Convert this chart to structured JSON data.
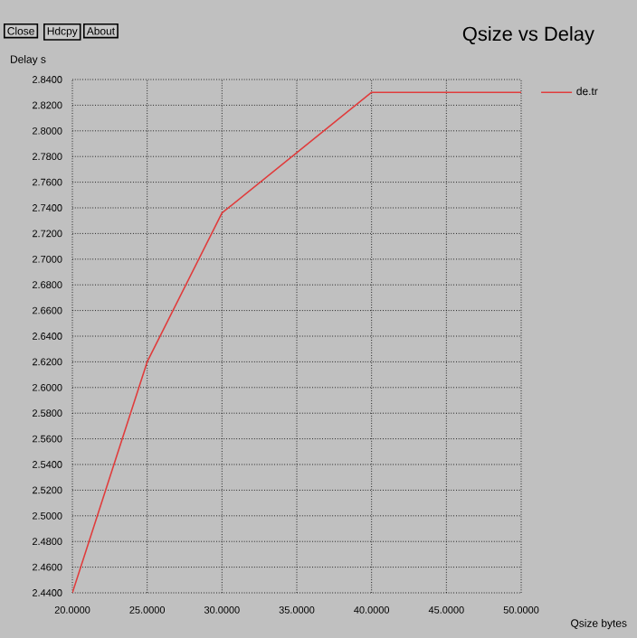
{
  "chart_data": {
    "type": "line",
    "title": "Qsize vs Delay",
    "xlabel": "Qsize bytes",
    "ylabel": "Delay s",
    "annotations": [
      "Close",
      "Hdcpy",
      "About"
    ],
    "x": [
      20,
      25,
      30,
      40,
      50
    ],
    "series": [
      {
        "name": "de.tr",
        "color": "#e03c3c",
        "values": [
          2.44,
          2.62,
          2.736,
          2.83,
          2.83
        ]
      }
    ],
    "xlim": [
      20,
      50
    ],
    "ylim": [
      2.44,
      2.84
    ],
    "xticks": [
      {
        "value": 20,
        "label": "20.0000"
      },
      {
        "value": 25,
        "label": "25.0000"
      },
      {
        "value": 30,
        "label": "30.0000"
      },
      {
        "value": 35,
        "label": "35.0000"
      },
      {
        "value": 40,
        "label": "40.0000"
      },
      {
        "value": 45,
        "label": "45.0000"
      },
      {
        "value": 50,
        "label": "50.0000"
      }
    ],
    "yticks": [
      {
        "value": 2.44,
        "label": "2.4400"
      },
      {
        "value": 2.46,
        "label": "2.4600"
      },
      {
        "value": 2.48,
        "label": "2.4800"
      },
      {
        "value": 2.5,
        "label": "2.5000"
      },
      {
        "value": 2.52,
        "label": "2.5200"
      },
      {
        "value": 2.54,
        "label": "2.5400"
      },
      {
        "value": 2.56,
        "label": "2.5600"
      },
      {
        "value": 2.58,
        "label": "2.5800"
      },
      {
        "value": 2.6,
        "label": "2.6000"
      },
      {
        "value": 2.62,
        "label": "2.6200"
      },
      {
        "value": 2.64,
        "label": "2.6400"
      },
      {
        "value": 2.66,
        "label": "2.6600"
      },
      {
        "value": 2.68,
        "label": "2.6800"
      },
      {
        "value": 2.7,
        "label": "2.7000"
      },
      {
        "value": 2.72,
        "label": "2.7200"
      },
      {
        "value": 2.74,
        "label": "2.7400"
      },
      {
        "value": 2.76,
        "label": "2.7600"
      },
      {
        "value": 2.78,
        "label": "2.7800"
      },
      {
        "value": 2.8,
        "label": "2.8000"
      },
      {
        "value": 2.82,
        "label": "2.8200"
      },
      {
        "value": 2.84,
        "label": "2.8400"
      }
    ],
    "grid": true,
    "legend": "top right",
    "marker": "none",
    "line_style": "solid"
  }
}
